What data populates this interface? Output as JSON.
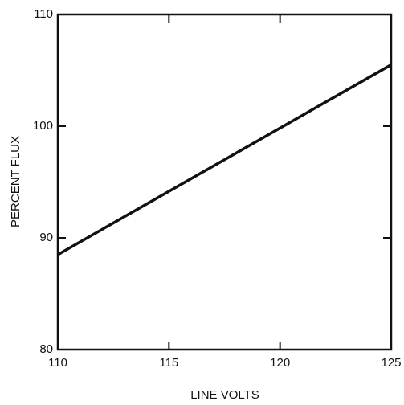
{
  "chart_data": {
    "type": "line",
    "x_label": "LINE VOLTS",
    "y_label": "PERCENT FLUX",
    "x": [
      110,
      125
    ],
    "values": [
      88.5,
      105.5
    ],
    "color": "#111111",
    "xlim": [
      110,
      125
    ],
    "xticks": [
      110,
      115,
      120,
      125
    ],
    "ylim": [
      80,
      110
    ],
    "yticks": [
      80,
      90,
      100,
      110
    ]
  }
}
